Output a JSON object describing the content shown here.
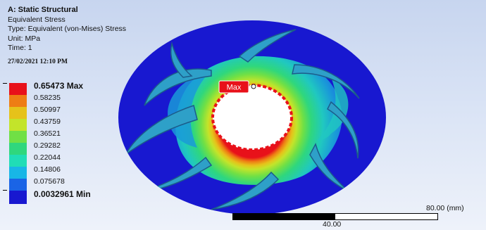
{
  "info": {
    "title": "A: Static Structural",
    "result": "Equivalent Stress",
    "type": "Type: Equivalent (von-Mises) Stress",
    "unit": "Unit: MPa",
    "time": "Time: 1",
    "date": "27/02/2021 12:10 PM"
  },
  "legend": {
    "entries": [
      {
        "label": "0.65473 Max",
        "color": "#e8111a"
      },
      {
        "label": "0.58235",
        "color": "#ee7d14"
      },
      {
        "label": "0.50997",
        "color": "#e6c21a"
      },
      {
        "label": "0.43759",
        "color": "#c3e42a"
      },
      {
        "label": "0.36521",
        "color": "#70e045"
      },
      {
        "label": "0.29282",
        "color": "#2fd77d"
      },
      {
        "label": "0.22044",
        "color": "#20ddb6"
      },
      {
        "label": "0.14806",
        "color": "#18b6e6"
      },
      {
        "label": "0.075678",
        "color": "#1a64e6"
      },
      {
        "label": "0.0032961 Min",
        "color": "#1818d0"
      }
    ]
  },
  "probe": {
    "label": "Max",
    "color": "#e8111a"
  },
  "scale": {
    "max_label": "80.00 (mm)",
    "mid_label": "40.00"
  }
}
